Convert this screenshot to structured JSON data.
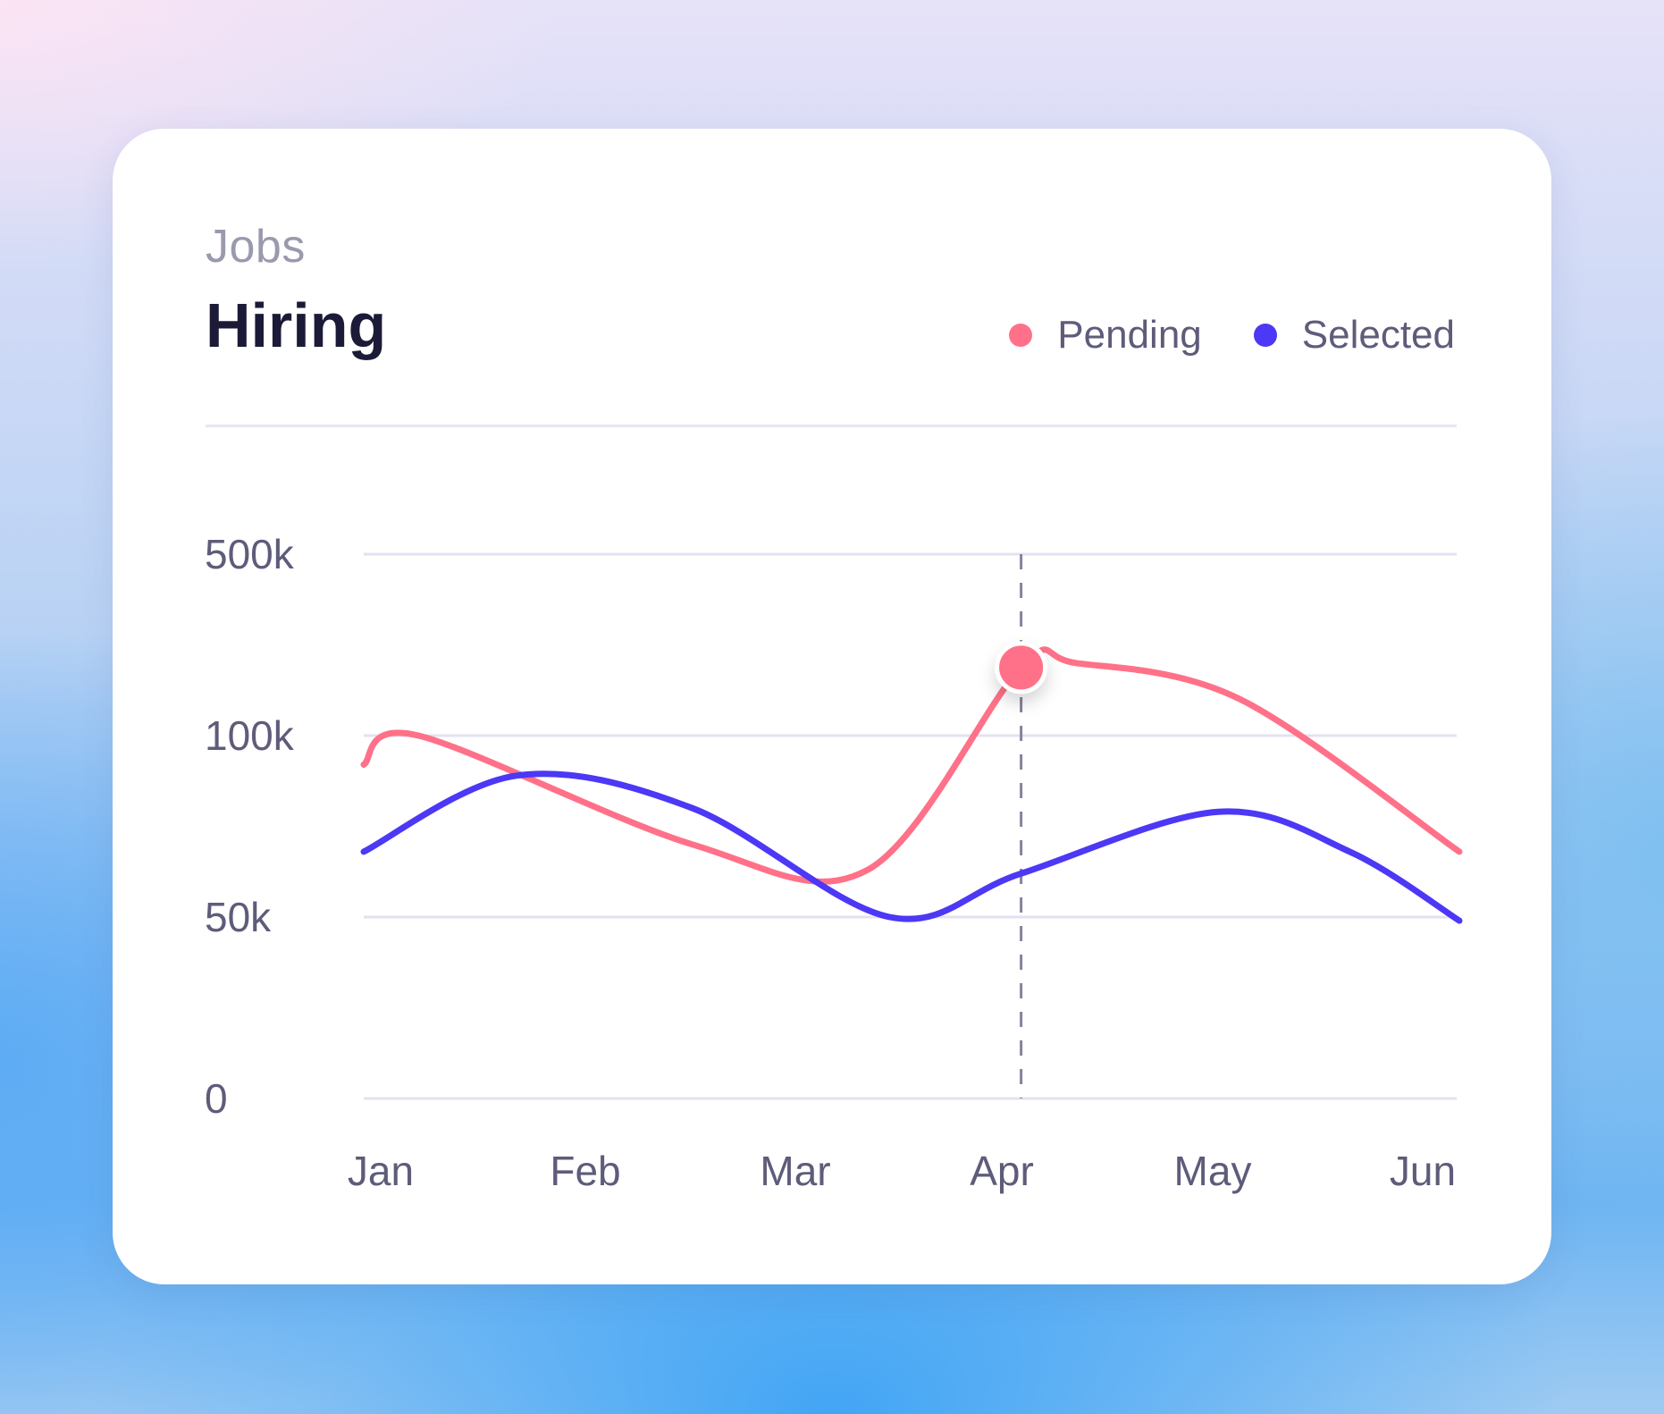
{
  "header": {
    "subtitle": "Jobs",
    "title": "Hiring"
  },
  "colors": {
    "pending": "#ff7189",
    "selected": "#4c38f5",
    "grid": "#e4e2ef",
    "tick_text": "#5e5c7a"
  },
  "chart_data": {
    "type": "line",
    "categories": [
      "Jan",
      "Feb",
      "Mar",
      "Apr",
      "May",
      "Jun"
    ],
    "y_ticks": [
      {
        "label": "500k",
        "value": 500000
      },
      {
        "label": "100k",
        "value": 100000
      },
      {
        "label": "50k",
        "value": 50000
      },
      {
        "label": "0",
        "value": 0
      }
    ],
    "y_scale": "non-linear (ticks 0, 50k, 100k, 500k evenly spaced)",
    "ylim": [
      0,
      500000
    ],
    "grid": true,
    "legend_position": "top-right",
    "series": [
      {
        "name": "Pending",
        "values": [
          {
            "x": 0.0,
            "y": 92000
          },
          {
            "x": 0.25,
            "y": 100000
          },
          {
            "x": 1.5,
            "y": 70000
          },
          {
            "x": 2.3,
            "y": 63000
          },
          {
            "x": 3.0,
            "y": 250000
          },
          {
            "x": 3.25,
            "y": 260000
          },
          {
            "x": 4.0,
            "y": 180000
          },
          {
            "x": 5.0,
            "y": 68000
          }
        ]
      },
      {
        "name": "Selected",
        "values": [
          {
            "x": 0.0,
            "y": 68000
          },
          {
            "x": 0.7,
            "y": 89000
          },
          {
            "x": 1.5,
            "y": 80000
          },
          {
            "x": 2.4,
            "y": 50000
          },
          {
            "x": 3.0,
            "y": 62000
          },
          {
            "x": 3.9,
            "y": 79000
          },
          {
            "x": 4.5,
            "y": 68000
          },
          {
            "x": 5.0,
            "y": 49000
          }
        ]
      }
    ],
    "highlight": {
      "category": "Apr",
      "series": "Pending"
    }
  }
}
